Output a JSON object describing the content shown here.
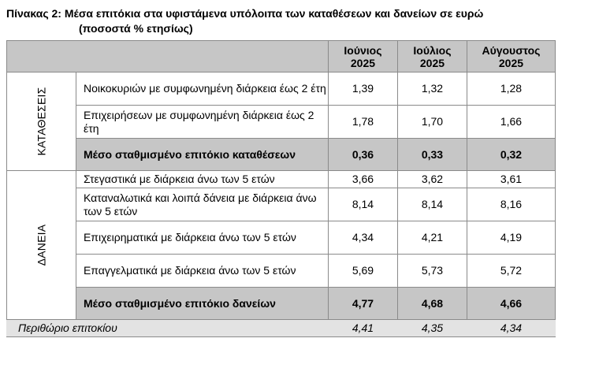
{
  "title": {
    "line1": "Πίνακας 2: Μέσα επιτόκια στα υφιστάμενα υπόλοιπα των καταθέσεων και δανείων σε ευρώ",
    "line2": "(ποσοστά % ετησίως)"
  },
  "columns": [
    {
      "month": "Ιούνιος",
      "year": "2025"
    },
    {
      "month": "Ιούλιος",
      "year": "2025"
    },
    {
      "month": "Αύγουστος",
      "year": "2025"
    }
  ],
  "deposits": {
    "group_label": "ΚΑΤΑΘΕΣΕΙΣ",
    "rows": [
      {
        "label": "Νοικοκυριών με συμφωνημένη διάρκεια έως 2 έτη",
        "values": [
          "1,39",
          "1,32",
          "1,28"
        ]
      },
      {
        "label": "Επιχειρήσεων με συμφωνημένη διάρκεια έως 2 έτη",
        "values": [
          "1,78",
          "1,70",
          "1,66"
        ]
      }
    ],
    "average": {
      "label": "Μέσο σταθμισμένο επιτόκιο καταθέσεων",
      "values": [
        "0,36",
        "0,33",
        "0,32"
      ]
    }
  },
  "loans": {
    "group_label": "ΔΑΝΕΙΑ",
    "rows": [
      {
        "label": "Στεγαστικά με διάρκεια άνω των 5 ετών",
        "values": [
          "3,66",
          "3,62",
          "3,61"
        ]
      },
      {
        "label": "Καταναλωτικά και λοιπά δάνεια με διάρκεια άνω των 5 ετών",
        "values": [
          "8,14",
          "8,14",
          "8,16"
        ]
      },
      {
        "label": "Επιχειρηματικά με διάρκεια άνω των 5 ετών",
        "values": [
          "4,34",
          "4,21",
          "4,19"
        ]
      },
      {
        "label": "Επαγγελματικά με διάρκεια άνω των 5 ετών",
        "values": [
          "5,69",
          "5,73",
          "5,72"
        ]
      }
    ],
    "average": {
      "label": "Μέσο σταθμισμένο επιτόκιο δανείων",
      "values": [
        "4,77",
        "4,68",
        "4,66"
      ]
    }
  },
  "margin": {
    "label": "Περιθώριο επιτοκίου",
    "values": [
      "4,41",
      "4,35",
      "4,34"
    ]
  }
}
